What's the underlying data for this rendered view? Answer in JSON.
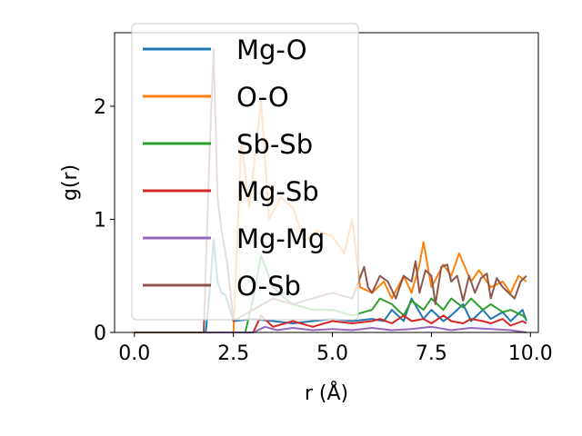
{
  "chart_data": {
    "type": "line",
    "xlabel": "r (Å)",
    "ylabel": "g(r)",
    "xlim": [
      -0.5,
      10.2
    ],
    "ylim": [
      0,
      2.65
    ],
    "x_ticks": [
      0.0,
      2.5,
      5.0,
      7.5,
      10.0
    ],
    "x_tick_labels": [
      "0.0",
      "2.5",
      "5.0",
      "7.5",
      "10.0"
    ],
    "y_ticks": [
      0,
      1,
      2
    ],
    "y_tick_labels": [
      "0",
      "1",
      "2"
    ],
    "grid": false,
    "legend_position": "upper-left",
    "colors": {
      "Mg-O": "#1f77b4",
      "O-O": "#ff7f0e",
      "Sb-Sb": "#2ca02c",
      "Mg-Sb": "#d62728",
      "Mg-Mg": "#9467bd",
      "O-Sb": "#8c564b"
    },
    "series": [
      {
        "name": "Mg-O",
        "x": [
          0.0,
          1.8,
          1.9,
          2.0,
          2.1,
          2.2,
          2.3,
          2.5,
          3.0,
          3.5,
          4.0,
          4.5,
          5.0,
          5.5,
          6.0,
          6.3,
          6.5,
          6.8,
          7.0,
          7.3,
          7.5,
          7.8,
          8.0,
          8.3,
          8.5,
          8.8,
          9.0,
          9.3,
          9.5,
          9.8,
          9.9
        ],
        "y": [
          0.0,
          0.0,
          0.35,
          0.82,
          0.45,
          0.35,
          0.33,
          0.1,
          0.12,
          0.1,
          0.08,
          0.1,
          0.12,
          0.1,
          0.12,
          0.1,
          0.2,
          0.1,
          0.3,
          0.12,
          0.2,
          0.1,
          0.15,
          0.25,
          0.1,
          0.2,
          0.12,
          0.18,
          0.1,
          0.2,
          0.1
        ]
      },
      {
        "name": "O-O",
        "x": [
          0.0,
          2.5,
          2.7,
          2.9,
          3.2,
          3.4,
          3.7,
          4.0,
          4.3,
          4.6,
          5.0,
          5.3,
          5.5,
          5.7,
          6.0,
          6.3,
          6.5,
          6.8,
          7.0,
          7.2,
          7.3,
          7.5,
          7.8,
          8.0,
          8.2,
          8.5,
          8.7,
          9.0,
          9.3,
          9.5,
          9.7,
          9.9
        ],
        "y": [
          0.0,
          0.0,
          1.7,
          1.1,
          2.05,
          1.0,
          1.2,
          1.1,
          0.8,
          0.9,
          0.85,
          0.7,
          1.0,
          0.4,
          0.35,
          0.45,
          0.3,
          0.5,
          0.35,
          0.6,
          0.8,
          0.4,
          0.6,
          0.5,
          0.7,
          0.45,
          0.55,
          0.4,
          0.45,
          0.35,
          0.5,
          0.45
        ]
      },
      {
        "name": "Sb-Sb",
        "x": [
          0.0,
          2.8,
          3.0,
          3.2,
          3.5,
          3.8,
          4.0,
          4.5,
          5.0,
          5.5,
          6.0,
          6.2,
          6.5,
          6.8,
          7.0,
          7.3,
          7.5,
          7.8,
          8.0,
          8.3,
          8.5,
          8.8,
          9.0,
          9.3,
          9.5,
          9.8,
          9.9
        ],
        "y": [
          0.0,
          0.0,
          0.3,
          0.68,
          0.4,
          0.3,
          0.25,
          0.2,
          0.2,
          0.15,
          0.2,
          0.3,
          0.25,
          0.15,
          0.28,
          0.2,
          0.3,
          0.2,
          0.3,
          0.22,
          0.3,
          0.2,
          0.25,
          0.18,
          0.2,
          0.15,
          0.12
        ]
      },
      {
        "name": "Mg-Sb",
        "x": [
          0.0,
          3.0,
          3.2,
          3.5,
          4.0,
          4.5,
          5.0,
          5.5,
          6.0,
          6.2,
          6.5,
          6.8,
          7.0,
          7.3,
          7.5,
          7.8,
          8.0,
          8.3,
          8.5,
          8.8,
          9.0,
          9.3,
          9.5,
          9.8,
          9.9
        ],
        "y": [
          0.0,
          0.0,
          0.15,
          0.05,
          0.1,
          0.05,
          0.1,
          0.08,
          0.1,
          0.12,
          0.08,
          0.15,
          0.1,
          0.12,
          0.08,
          0.15,
          0.1,
          0.08,
          0.12,
          0.1,
          0.08,
          0.12,
          0.06,
          0.1,
          0.08
        ]
      },
      {
        "name": "Mg-Mg",
        "x": [
          0.0,
          3.0,
          3.3,
          3.6,
          4.0,
          4.5,
          5.0,
          5.5,
          6.0,
          6.5,
          7.0,
          7.5,
          8.0,
          8.5,
          9.0,
          9.5,
          9.9
        ],
        "y": [
          0.0,
          0.0,
          0.05,
          0.02,
          0.04,
          0.02,
          0.03,
          0.02,
          0.04,
          0.02,
          0.03,
          0.05,
          0.02,
          0.04,
          0.03,
          0.02,
          0.0
        ]
      },
      {
        "name": "O-Sb",
        "x": [
          0.0,
          1.75,
          1.9,
          2.0,
          2.1,
          2.2,
          2.35,
          2.5,
          3.0,
          3.5,
          4.0,
          4.5,
          5.0,
          5.5,
          5.8,
          5.9,
          6.0,
          6.2,
          6.4,
          6.6,
          6.8,
          7.0,
          7.1,
          7.2,
          7.35,
          7.5,
          7.6,
          7.75,
          7.9,
          8.0,
          8.15,
          8.3,
          8.45,
          8.6,
          8.75,
          8.9,
          9.0,
          9.15,
          9.3,
          9.45,
          9.6,
          9.75,
          9.9
        ],
        "y": [
          0.0,
          0.0,
          1.6,
          2.5,
          1.2,
          0.9,
          0.6,
          0.1,
          0.2,
          0.3,
          0.25,
          0.3,
          0.35,
          0.3,
          0.58,
          0.4,
          0.35,
          0.5,
          0.45,
          0.3,
          0.5,
          0.45,
          0.63,
          0.35,
          0.55,
          0.5,
          0.25,
          0.58,
          0.6,
          0.45,
          0.5,
          0.28,
          0.5,
          0.35,
          0.48,
          0.52,
          0.3,
          0.48,
          0.4,
          0.35,
          0.3,
          0.45,
          0.5
        ]
      }
    ]
  }
}
